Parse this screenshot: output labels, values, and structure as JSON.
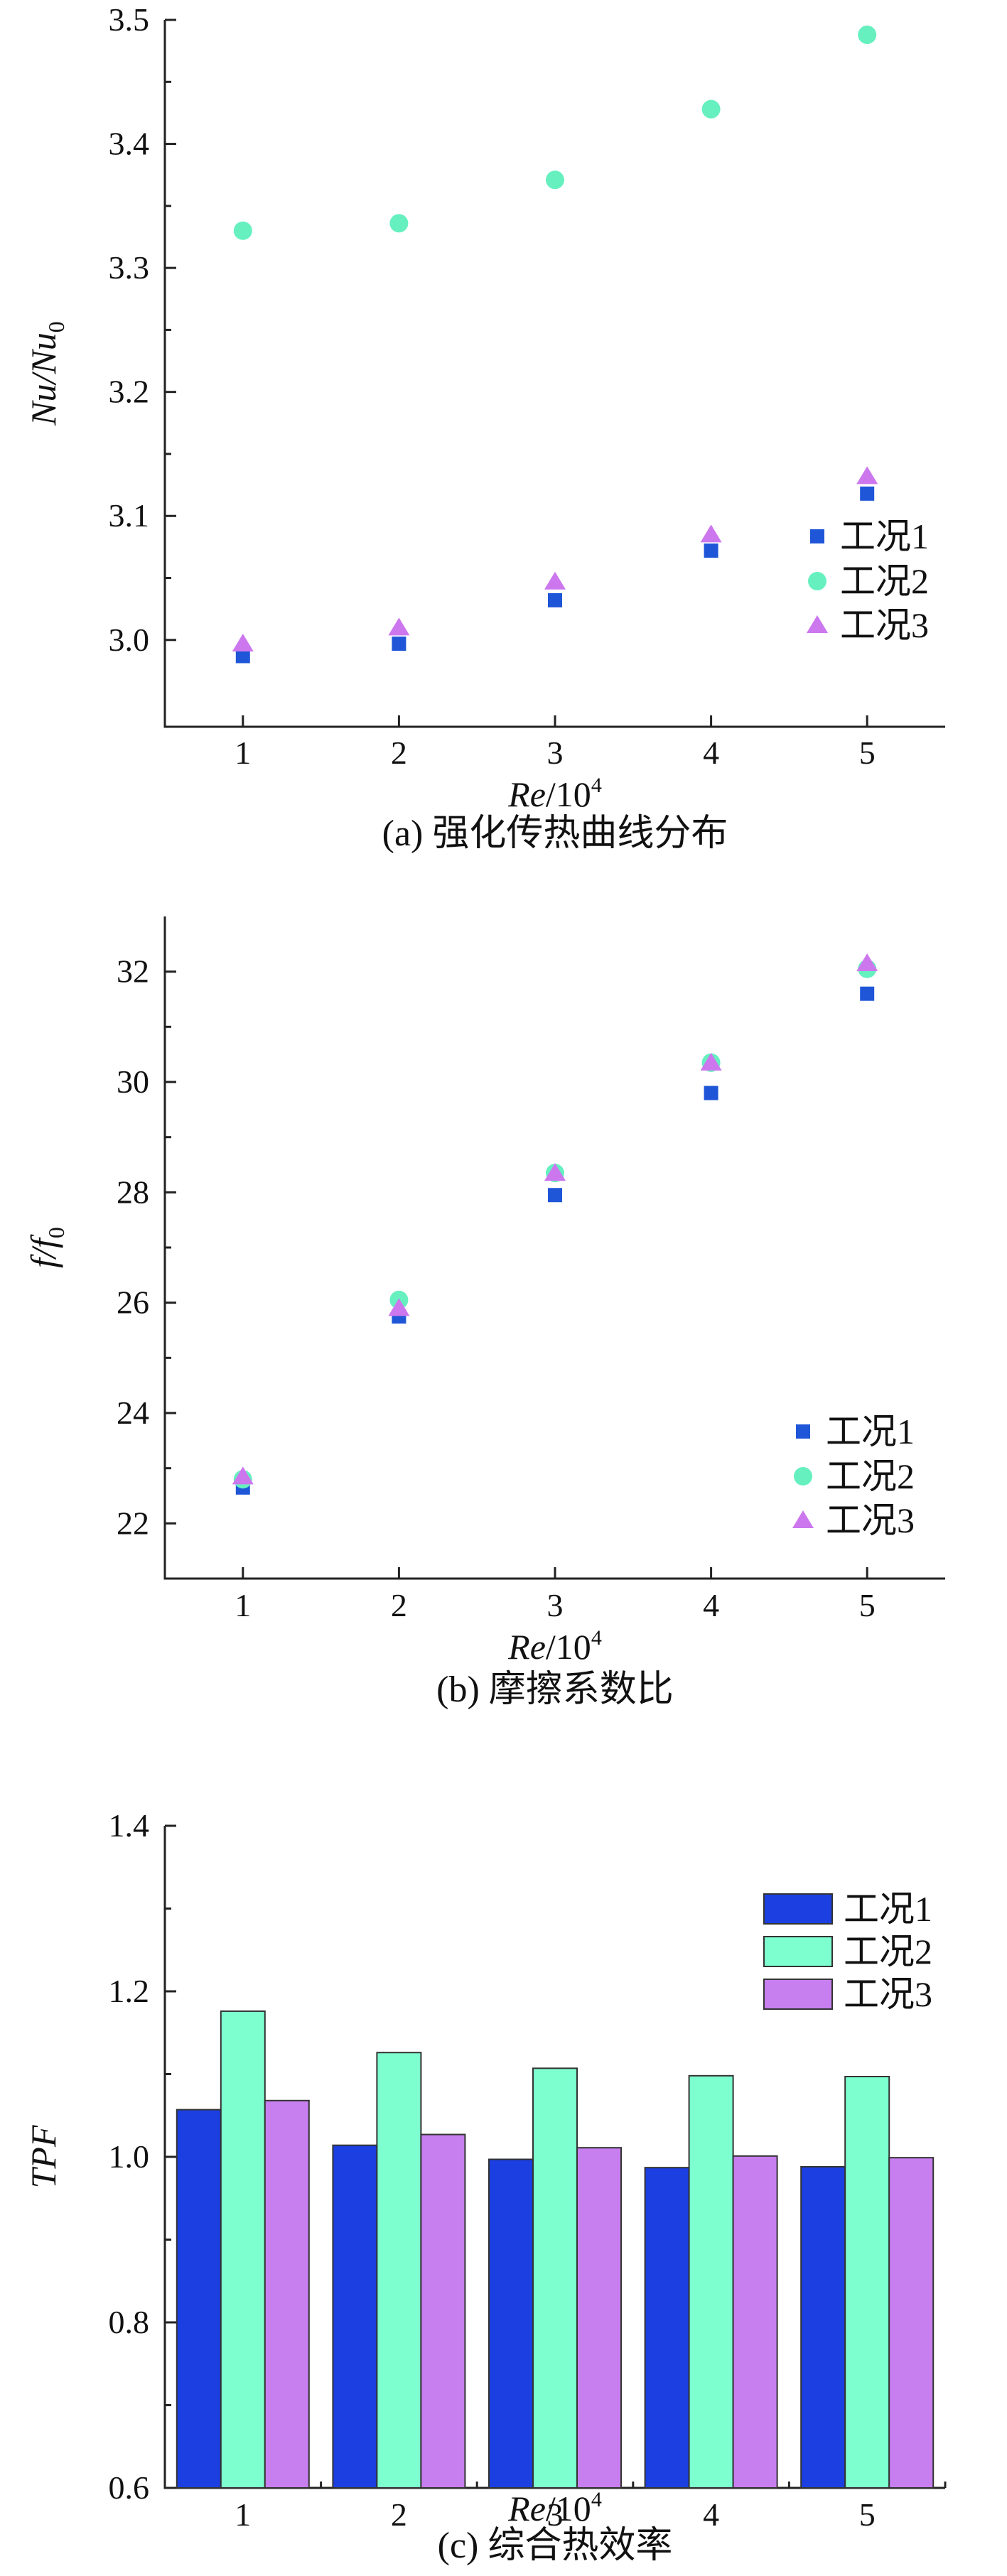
{
  "colors": {
    "case1": "#1f56d8",
    "case2": "#66f0c0",
    "case3": "#cc77ee",
    "case1_bar": "#1b3fe0",
    "case2_bar": "#7dffd0",
    "case3_bar": "#c77eef"
  },
  "chart_data": [
    {
      "type": "scatter",
      "caption": "(a) 强化传热曲线分布",
      "xlabel_italic": "Re",
      "xlabel_rest": "/10",
      "xlabel_sup": "4",
      "ylabel_main": "Nu",
      "ylabel_mid": "/Nu",
      "ylabel_sub": "0",
      "x_ticks": [
        "1",
        "2",
        "3",
        "4",
        "5"
      ],
      "y_ticks": [
        "3.0",
        "3.1",
        "3.2",
        "3.3",
        "3.4",
        "3.5"
      ],
      "xlim": [
        0.5,
        5.5
      ],
      "ylim": [
        2.93,
        3.5
      ],
      "grid": false,
      "legend_position": "bottom-right",
      "series": [
        {
          "name": "工况1",
          "marker": "square",
          "color": "#1f56d8",
          "x": [
            1,
            2,
            3,
            4,
            5
          ],
          "y": [
            2.987,
            2.997,
            3.032,
            3.072,
            3.118
          ]
        },
        {
          "name": "工况2",
          "marker": "circle",
          "color": "#66f0c0",
          "x": [
            1,
            2,
            3,
            4,
            5
          ],
          "y": [
            3.33,
            3.336,
            3.371,
            3.428,
            3.488
          ]
        },
        {
          "name": "工况3",
          "marker": "triangle",
          "color": "#cc77ee",
          "x": [
            1,
            2,
            3,
            4,
            5
          ],
          "y": [
            2.997,
            3.01,
            3.047,
            3.085,
            3.132
          ]
        }
      ]
    },
    {
      "type": "scatter",
      "caption": "(b) 摩擦系数比",
      "xlabel_italic": "Re",
      "xlabel_rest": "/10",
      "xlabel_sup": "4",
      "ylabel_main": "f",
      "ylabel_mid": "/f",
      "ylabel_sub": "0",
      "x_ticks": [
        "1",
        "2",
        "3",
        "4",
        "5"
      ],
      "y_ticks": [
        "22",
        "24",
        "26",
        "28",
        "30",
        "32"
      ],
      "xlim": [
        0.5,
        5.5
      ],
      "ylim": [
        21.0,
        33.0
      ],
      "grid": false,
      "legend_position": "bottom-right",
      "series": [
        {
          "name": "工况1",
          "marker": "square",
          "color": "#1f56d8",
          "x": [
            1,
            2,
            3,
            4,
            5
          ],
          "y": [
            22.65,
            25.75,
            27.95,
            29.8,
            31.6
          ]
        },
        {
          "name": "工况2",
          "marker": "circle",
          "color": "#66f0c0",
          "x": [
            1,
            2,
            3,
            4,
            5
          ],
          "y": [
            22.8,
            26.05,
            28.35,
            30.35,
            32.05
          ]
        },
        {
          "name": "工况3",
          "marker": "triangle",
          "color": "#cc77ee",
          "x": [
            1,
            2,
            3,
            4,
            5
          ],
          "y": [
            22.85,
            25.9,
            28.35,
            30.35,
            32.15
          ]
        }
      ]
    },
    {
      "type": "bar",
      "caption": "(c) 综合热效率",
      "xlabel_italic": "Re",
      "xlabel_rest": "/10",
      "xlabel_sup": "4",
      "ylabel_main": "TPF",
      "ylabel_mid": "",
      "ylabel_sub": "",
      "categories": [
        "1",
        "2",
        "3",
        "4",
        "5"
      ],
      "y_ticks": [
        "0.6",
        "0.8",
        "1.0",
        "1.2",
        "1.4"
      ],
      "ylim": [
        0.6,
        1.4
      ],
      "grid": false,
      "legend_position": "top-right",
      "series": [
        {
          "name": "工况1",
          "color": "#1b3fe0",
          "values": [
            1.057,
            1.014,
            0.997,
            0.987,
            0.988
          ]
        },
        {
          "name": "工况2",
          "color": "#7dffd0",
          "values": [
            1.176,
            1.126,
            1.107,
            1.098,
            1.097
          ]
        },
        {
          "name": "工况3",
          "color": "#c77eef",
          "values": [
            1.068,
            1.027,
            1.011,
            1.001,
            0.999
          ]
        }
      ]
    }
  ]
}
